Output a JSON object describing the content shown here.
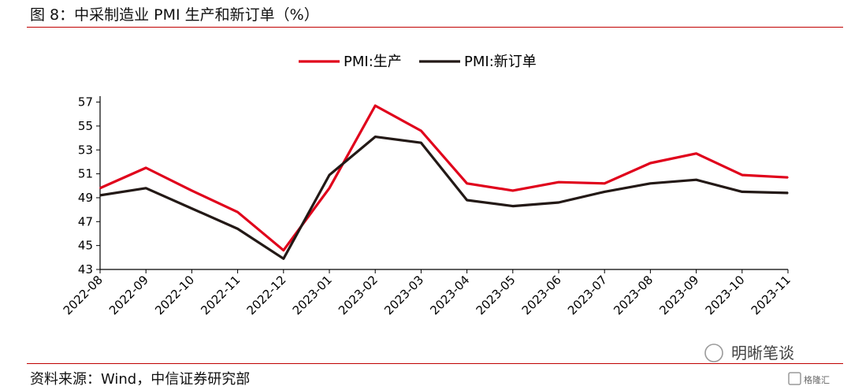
{
  "header": {
    "title": "图 8：中采制造业 PMI 生产和新订单（%）"
  },
  "footer": {
    "source": "资料来源：Wind，中信证券研究部"
  },
  "watermark": {
    "name": "明晰笔谈",
    "badge": "格隆汇"
  },
  "colors": {
    "series_production": "#e0001b",
    "series_new_orders": "#231916",
    "rule": "#c00000"
  },
  "chart_data": {
    "type": "line",
    "title": "",
    "xlabel": "",
    "ylabel": "",
    "ylim": [
      43,
      57.5
    ],
    "yticks": [
      43,
      45,
      47,
      49,
      51,
      53,
      55,
      57
    ],
    "grid": false,
    "legend_position": "top-center",
    "x": [
      "2022-08",
      "2022-09",
      "2022-10",
      "2022-11",
      "2022-12",
      "2023-01",
      "2023-02",
      "2023-03",
      "2023-04",
      "2023-05",
      "2023-06",
      "2023-07",
      "2023-08",
      "2023-09",
      "2023-10",
      "2023-11"
    ],
    "series": [
      {
        "name": "PMI:生产",
        "color": "#e0001b",
        "values": [
          49.8,
          51.5,
          49.6,
          47.8,
          44.6,
          49.8,
          56.7,
          54.6,
          50.2,
          49.6,
          50.3,
          50.2,
          51.9,
          52.7,
          50.9,
          50.7
        ]
      },
      {
        "name": "PMI:新订单",
        "color": "#231916",
        "values": [
          49.2,
          49.8,
          48.1,
          46.4,
          43.9,
          50.9,
          54.1,
          53.6,
          48.8,
          48.3,
          48.6,
          49.5,
          50.2,
          50.5,
          49.5,
          49.4
        ]
      }
    ]
  }
}
